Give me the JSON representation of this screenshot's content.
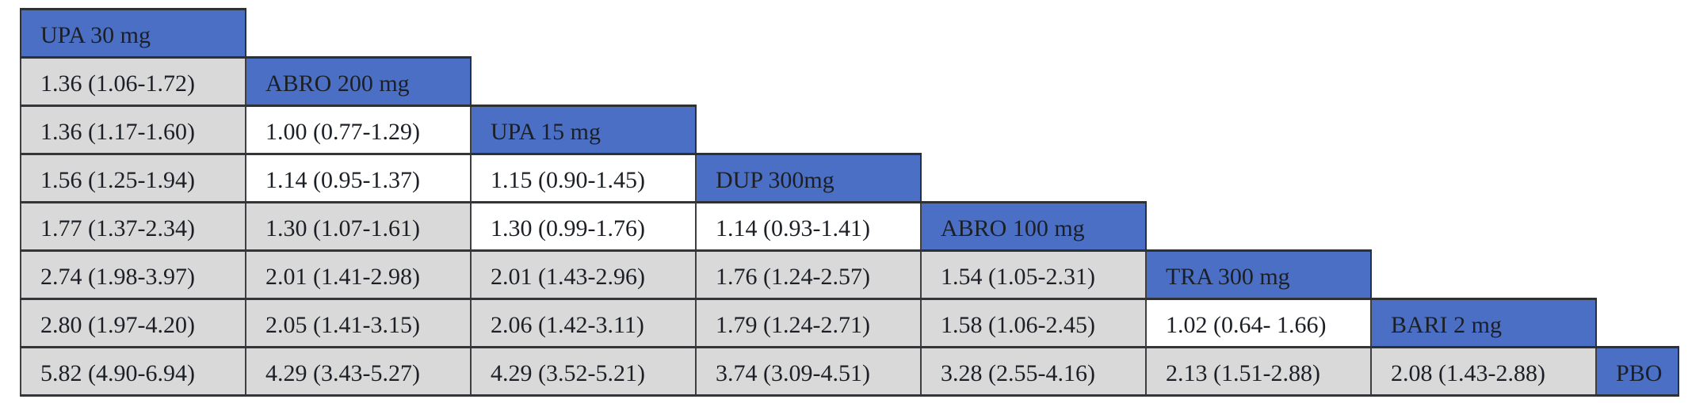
{
  "page": {
    "background": "#FFFFFF"
  },
  "colors": {
    "header_blue": "#4A6FC5",
    "shaded_cell_gray": "#D9D9D9",
    "unshaded_cell_white": "#FFFFFF",
    "border_dark": "#333538",
    "value_text": "#1C2026",
    "header_text": "#FFFFFF"
  },
  "chart_data": {
    "type": "table",
    "subtype": "network-meta-analysis-league-table",
    "diagonal_treatments": [
      "UPA 30 mg",
      "ABRO 200 mg",
      "UPA 15 mg",
      "DUP 300mg",
      "ABRO 100 mg",
      "TRA 300 mg",
      "BARI 2 mg",
      "PBO"
    ],
    "shading_meaning": "shaded=true rendered gray, shaded=false rendered white",
    "rows": [
      {
        "treatment": "UPA 30 mg",
        "comparisons": []
      },
      {
        "treatment": "ABRO 200 mg",
        "comparisons": [
          {
            "value": "1.36 (1.06-1.72)",
            "shaded": true
          }
        ]
      },
      {
        "treatment": "UPA 15 mg",
        "comparisons": [
          {
            "value": "1.36 (1.17-1.60)",
            "shaded": true
          },
          {
            "value": "1.00 (0.77-1.29)",
            "shaded": false
          }
        ]
      },
      {
        "treatment": "DUP 300mg",
        "comparisons": [
          {
            "value": "1.56 (1.25-1.94)",
            "shaded": true
          },
          {
            "value": "1.14 (0.95-1.37)",
            "shaded": false
          },
          {
            "value": "1.15 (0.90-1.45)",
            "shaded": false
          }
        ]
      },
      {
        "treatment": "ABRO 100 mg",
        "comparisons": [
          {
            "value": "1.77 (1.37-2.34)",
            "shaded": true
          },
          {
            "value": "1.30 (1.07-1.61)",
            "shaded": true
          },
          {
            "value": "1.30 (0.99-1.76)",
            "shaded": false
          },
          {
            "value": "1.14 (0.93-1.41)",
            "shaded": false
          }
        ]
      },
      {
        "treatment": "TRA 300 mg",
        "comparisons": [
          {
            "value": "2.74 (1.98-3.97)",
            "shaded": true
          },
          {
            "value": "2.01 (1.41-2.98)",
            "shaded": true
          },
          {
            "value": "2.01 (1.43-2.96)",
            "shaded": true
          },
          {
            "value": "1.76 (1.24-2.57)",
            "shaded": true
          },
          {
            "value": "1.54 (1.05-2.31)",
            "shaded": true
          }
        ]
      },
      {
        "treatment": "BARI 2 mg",
        "comparisons": [
          {
            "value": "2.80 (1.97-4.20)",
            "shaded": true
          },
          {
            "value": "2.05 (1.41-3.15)",
            "shaded": true
          },
          {
            "value": "2.06 (1.42-3.11)",
            "shaded": true
          },
          {
            "value": "1.79 (1.24-2.71)",
            "shaded": true
          },
          {
            "value": "1.58 (1.06-2.45)",
            "shaded": true
          },
          {
            "value": "1.02 (0.64- 1.66)",
            "shaded": false
          }
        ]
      },
      {
        "treatment": "PBO",
        "comparisons": [
          {
            "value": "5.82 (4.90-6.94)",
            "shaded": true
          },
          {
            "value": "4.29 (3.43-5.27)",
            "shaded": true
          },
          {
            "value": "4.29 (3.52-5.21)",
            "shaded": true
          },
          {
            "value": "3.74 (3.09-4.51)",
            "shaded": true
          },
          {
            "value": "3.28 (2.55-4.16)",
            "shaded": true
          },
          {
            "value": "2.13 (1.51-2.88)",
            "shaded": true
          },
          {
            "value": "2.08 (1.43-2.88)",
            "shaded": true
          }
        ]
      }
    ]
  }
}
